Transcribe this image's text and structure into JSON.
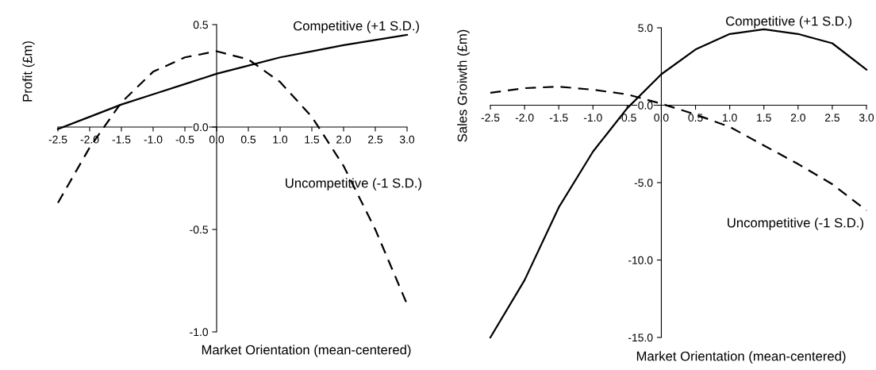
{
  "chart_data": [
    {
      "type": "line",
      "xlabel": "Market Orientation (mean-centered)",
      "ylabel": "Profit (£m)",
      "x": [
        -2.5,
        -2.0,
        -1.5,
        -1.0,
        -0.5,
        0.0,
        0.5,
        1.0,
        1.5,
        2.0,
        2.5,
        3.0
      ],
      "xlim": [
        -2.5,
        3.0
      ],
      "xticks": [
        {
          "value": -2.5,
          "label": "-2.5"
        },
        {
          "value": -2.0,
          "label": "-2.0"
        },
        {
          "value": -1.5,
          "label": "-1.5"
        },
        {
          "value": -1.0,
          "label": "-1.0"
        },
        {
          "value": -0.5,
          "label": "-0.5"
        },
        {
          "value": 0.0,
          "label": "0.0"
        },
        {
          "value": 0.5,
          "label": "0.5"
        },
        {
          "value": 1.0,
          "label": "1.0"
        },
        {
          "value": 1.5,
          "label": "1.5"
        },
        {
          "value": 2.0,
          "label": "2.0"
        },
        {
          "value": 2.5,
          "label": "2.5"
        },
        {
          "value": 3.0,
          "label": "3.0"
        }
      ],
      "ylim": [
        -1.0,
        0.5
      ],
      "yticks": [
        {
          "value": -1.0,
          "label": "-1.0"
        },
        {
          "value": -0.5,
          "label": "-0.5"
        },
        {
          "value": 0.0,
          "label": "0.0"
        },
        {
          "value": 0.5,
          "label": "0.5"
        }
      ],
      "grid": false,
      "legend": false,
      "marker": "none",
      "series": [
        {
          "name": "Competitive (+1 S.D.)",
          "color": "#000000",
          "line_style": "solid",
          "values": [
            -0.01,
            0.05,
            0.11,
            0.16,
            0.21,
            0.26,
            0.3,
            0.34,
            0.37,
            0.4,
            0.425,
            0.45
          ]
        },
        {
          "name": "Uncompetitive (-1 S.D.)",
          "color": "#000000",
          "line_style": "dashed",
          "values": [
            -0.37,
            -0.1,
            0.12,
            0.27,
            0.34,
            0.37,
            0.33,
            0.22,
            0.05,
            -0.19,
            -0.5,
            -0.865
          ]
        }
      ]
    },
    {
      "type": "line",
      "xlabel": "Market Orientation (mean-centered)",
      "ylabel": "Sales Groiwth (£m)",
      "x": [
        -2.5,
        -2.0,
        -1.5,
        -1.0,
        -0.5,
        0.0,
        0.5,
        1.0,
        1.5,
        2.0,
        2.5,
        3.0
      ],
      "xlim": [
        -2.5,
        3.0
      ],
      "xticks": [
        {
          "value": -2.5,
          "label": "-2.5"
        },
        {
          "value": -2.0,
          "label": "-2.0"
        },
        {
          "value": -1.5,
          "label": "-1.5"
        },
        {
          "value": -1.0,
          "label": "-1.0"
        },
        {
          "value": -0.5,
          "label": "-0.5"
        },
        {
          "value": 0.0,
          "label": "0.0"
        },
        {
          "value": 0.5,
          "label": "0.5"
        },
        {
          "value": 1.0,
          "label": "1.0"
        },
        {
          "value": 1.5,
          "label": "1.5"
        },
        {
          "value": 2.0,
          "label": "2.0"
        },
        {
          "value": 2.5,
          "label": "2.5"
        },
        {
          "value": 3.0,
          "label": "3.0"
        }
      ],
      "ylim": [
        -15.0,
        5.0
      ],
      "yticks": [
        {
          "value": -15.0,
          "label": "-15.0"
        },
        {
          "value": -10.0,
          "label": "-10.0"
        },
        {
          "value": -5.0,
          "label": "-5.0"
        },
        {
          "value": 0.0,
          "label": "0.0"
        },
        {
          "value": 5.0,
          "label": "5.0"
        }
      ],
      "grid": false,
      "legend": false,
      "marker": "none",
      "series": [
        {
          "name": "Competitive (+1 S.D.)",
          "color": "#000000",
          "line_style": "solid",
          "values": [
            -15.0,
            -11.3,
            -6.6,
            -3.0,
            -0.2,
            2.0,
            3.6,
            4.6,
            4.9,
            4.6,
            4.0,
            2.3
          ]
        },
        {
          "name": "Uncompetitive (-1 S.D.)",
          "color": "#000000",
          "line_style": "dashed",
          "values": [
            0.8,
            1.1,
            1.2,
            1.0,
            0.7,
            0.1,
            -0.6,
            -1.4,
            -2.6,
            -3.8,
            -5.1,
            -6.8
          ]
        }
      ]
    }
  ]
}
